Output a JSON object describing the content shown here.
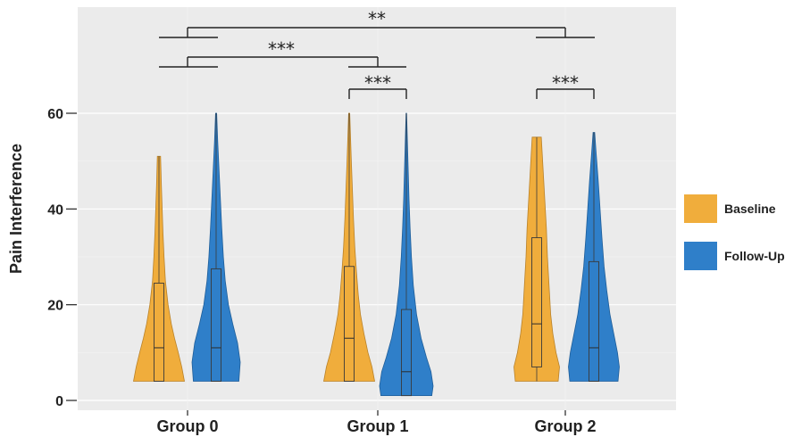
{
  "chart_data": {
    "type": "violin",
    "ylabel": "Pain Interference",
    "ylim": [
      0,
      60
    ],
    "yticks": [
      "0",
      "20",
      "40",
      "60"
    ],
    "categories": [
      "Group 0",
      "Group 1",
      "Group 2"
    ],
    "grid": true,
    "legend_position": "right",
    "series": [
      {
        "name": "Baseline",
        "color": "#f0ad3c",
        "violins": [
          {
            "category": "Group 0",
            "min": 4,
            "max": 51,
            "q1": 4,
            "median": 11,
            "q3": 24.5,
            "profile": [
              [
                4,
                0.95
              ],
              [
                7,
                0.85
              ],
              [
                10,
                0.72
              ],
              [
                13,
                0.58
              ],
              [
                16,
                0.46
              ],
              [
                20,
                0.34
              ],
              [
                25,
                0.24
              ],
              [
                30,
                0.19
              ],
              [
                35,
                0.15
              ],
              [
                40,
                0.12
              ],
              [
                45,
                0.09
              ],
              [
                49,
                0.07
              ],
              [
                51,
                0.06
              ]
            ]
          },
          {
            "category": "Group 1",
            "min": 4,
            "max": 60,
            "q1": 4,
            "median": 13,
            "q3": 28,
            "profile": [
              [
                4,
                0.95
              ],
              [
                7,
                0.85
              ],
              [
                10,
                0.7
              ],
              [
                14,
                0.55
              ],
              [
                18,
                0.42
              ],
              [
                22,
                0.34
              ],
              [
                27,
                0.27
              ],
              [
                32,
                0.21
              ],
              [
                38,
                0.16
              ],
              [
                44,
                0.12
              ],
              [
                50,
                0.08
              ],
              [
                55,
                0.05
              ],
              [
                60,
                0.02
              ]
            ]
          },
          {
            "category": "Group 2",
            "min": 4,
            "max": 55,
            "q1": 7,
            "median": 16,
            "q3": 34,
            "profile": [
              [
                4,
                0.8
              ],
              [
                7,
                0.85
              ],
              [
                10,
                0.72
              ],
              [
                14,
                0.6
              ],
              [
                18,
                0.52
              ],
              [
                24,
                0.46
              ],
              [
                30,
                0.4
              ],
              [
                36,
                0.36
              ],
              [
                42,
                0.3
              ],
              [
                48,
                0.24
              ],
              [
                52,
                0.2
              ],
              [
                55,
                0.17
              ]
            ]
          }
        ]
      },
      {
        "name": "Follow-Up",
        "color": "#2f7fc9",
        "violins": [
          {
            "category": "Group 0",
            "min": 4,
            "max": 60,
            "q1": 4,
            "median": 11,
            "q3": 27.5,
            "profile": [
              [
                4,
                0.85
              ],
              [
                8,
                0.9
              ],
              [
                12,
                0.8
              ],
              [
                16,
                0.62
              ],
              [
                20,
                0.46
              ],
              [
                25,
                0.34
              ],
              [
                30,
                0.27
              ],
              [
                36,
                0.21
              ],
              [
                42,
                0.16
              ],
              [
                48,
                0.11
              ],
              [
                54,
                0.06
              ],
              [
                60,
                0.02
              ]
            ]
          },
          {
            "category": "Group 1",
            "min": 1,
            "max": 60,
            "q1": 1,
            "median": 6,
            "q3": 19,
            "profile": [
              [
                1,
                0.95
              ],
              [
                3,
                1.0
              ],
              [
                6,
                0.92
              ],
              [
                9,
                0.75
              ],
              [
                13,
                0.55
              ],
              [
                18,
                0.38
              ],
              [
                24,
                0.26
              ],
              [
                30,
                0.19
              ],
              [
                36,
                0.14
              ],
              [
                42,
                0.1
              ],
              [
                48,
                0.07
              ],
              [
                54,
                0.04
              ],
              [
                60,
                0.01
              ]
            ]
          },
          {
            "category": "Group 2",
            "min": 4,
            "max": 56,
            "q1": 4,
            "median": 11,
            "q3": 29,
            "profile": [
              [
                4,
                0.9
              ],
              [
                7,
                0.95
              ],
              [
                10,
                0.88
              ],
              [
                14,
                0.74
              ],
              [
                18,
                0.6
              ],
              [
                23,
                0.48
              ],
              [
                28,
                0.38
              ],
              [
                34,
                0.3
              ],
              [
                40,
                0.23
              ],
              [
                46,
                0.16
              ],
              [
                52,
                0.08
              ],
              [
                56,
                0.03
              ]
            ]
          }
        ]
      }
    ],
    "significance": [
      {
        "groups": [
          "Group 0",
          "Group 2"
        ],
        "label": "**"
      },
      {
        "groups": [
          "Group 0",
          "Group 1"
        ],
        "label": "***"
      },
      {
        "groups": [
          "Group 1 Baseline",
          "Group 1 Follow-Up"
        ],
        "label": "***"
      },
      {
        "groups": [
          "Group 2 Baseline",
          "Group 2 Follow-Up"
        ],
        "label": "***"
      }
    ]
  }
}
